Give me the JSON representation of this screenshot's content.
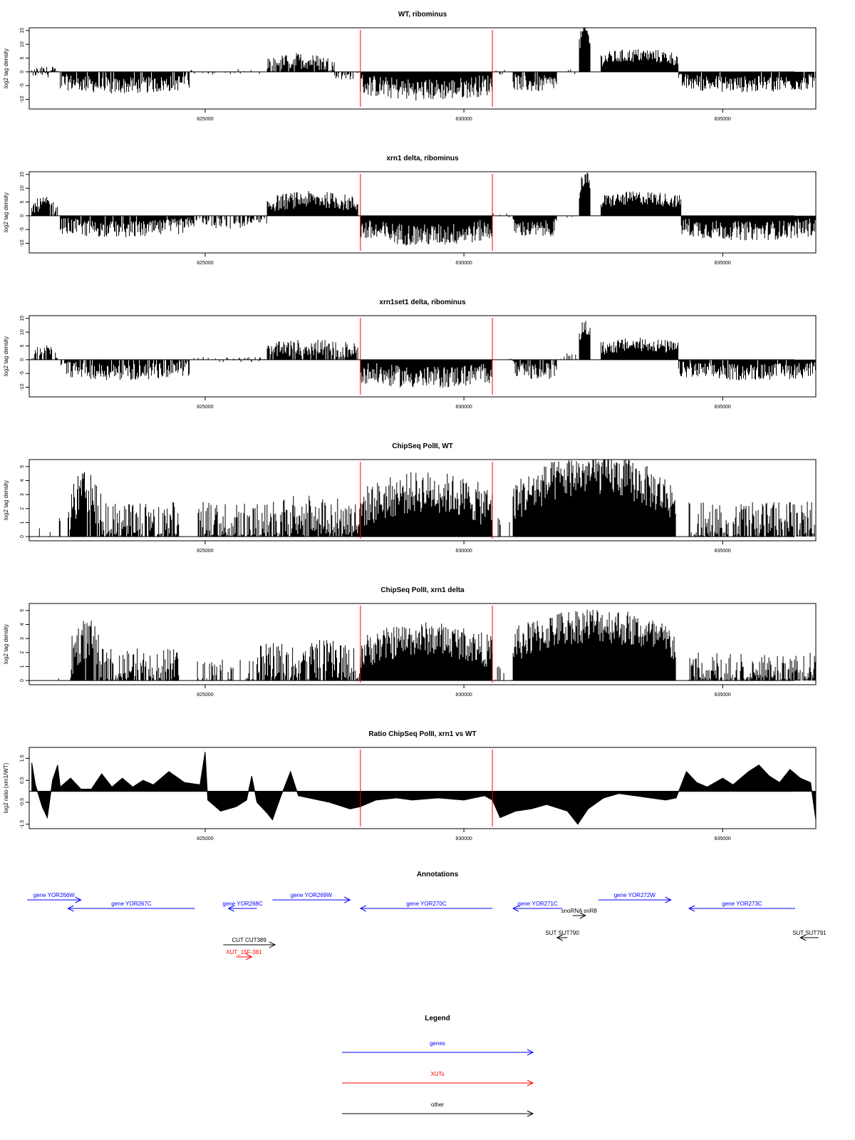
{
  "colors": {
    "gene": "#0000ff",
    "xut": "#ff0000",
    "other": "#000000",
    "marker": "#ff0000",
    "bars": "#000000"
  },
  "chart_data": [
    {
      "type": "bar",
      "title": "WT, ribominus",
      "xlabel": "",
      "ylabel": "log2 tag density",
      "xlim": [
        821600,
        836800
      ],
      "ylim": [
        -13.5,
        16
      ],
      "yticks": [
        15,
        10,
        5,
        0,
        -5,
        -10
      ],
      "xticks": [
        825000,
        830000,
        835000
      ],
      "markers": [
        828000,
        830550
      ],
      "segments": [
        {
          "x0": 821650,
          "x1": 822150,
          "base": 0,
          "amp": 3,
          "var": 2,
          "density": 0.8
        },
        {
          "x0": 822200,
          "x1": 824700,
          "base": -3.5,
          "amp": -1.5,
          "var": 3,
          "density": 0.9
        },
        {
          "x0": 824700,
          "x1": 826200,
          "base": 0,
          "amp": 1,
          "var": 1,
          "density": 0.25
        },
        {
          "x0": 826200,
          "x1": 827500,
          "base": 2,
          "amp": 2,
          "var": 3,
          "density": 0.9
        },
        {
          "x0": 827500,
          "x1": 828000,
          "base": -0.5,
          "amp": -1,
          "var": 2,
          "density": 0.5
        },
        {
          "x0": 828000,
          "x1": 830550,
          "base": -4.5,
          "amp": -2,
          "var": 4,
          "density": 1
        },
        {
          "x0": 830550,
          "x1": 830950,
          "base": 0,
          "amp": 0,
          "var": 1,
          "density": 0.1
        },
        {
          "x0": 830950,
          "x1": 831800,
          "base": -3.5,
          "amp": -1,
          "var": 3,
          "density": 0.95
        },
        {
          "x0": 831800,
          "x1": 832200,
          "base": 0,
          "amp": 0,
          "var": 1,
          "density": 0.1
        },
        {
          "x0": 832230,
          "x1": 832450,
          "base": 10,
          "amp": 5,
          "var": 3,
          "density": 1
        },
        {
          "x0": 832650,
          "x1": 834150,
          "base": 4.5,
          "amp": 1.5,
          "var": 2.5,
          "density": 1
        },
        {
          "x0": 834150,
          "x1": 836800,
          "base": -3.5,
          "amp": -1,
          "var": 3,
          "density": 0.95
        }
      ]
    },
    {
      "type": "bar",
      "title": "xrn1 delta, ribominus",
      "xlabel": "",
      "ylabel": "log2 tag density",
      "xlim": [
        821600,
        836800
      ],
      "ylim": [
        -13.5,
        16
      ],
      "yticks": [
        15,
        10,
        5,
        0,
        -5,
        -10
      ],
      "xticks": [
        825000,
        830000,
        835000
      ],
      "markers": [
        828000,
        830550
      ],
      "segments": [
        {
          "x0": 821650,
          "x1": 822150,
          "base": 2.5,
          "amp": 2,
          "var": 2.5,
          "density": 0.9
        },
        {
          "x0": 822200,
          "x1": 824700,
          "base": -3.5,
          "amp": -1.5,
          "var": 3,
          "density": 0.95
        },
        {
          "x0": 824700,
          "x1": 826200,
          "base": -2,
          "amp": -1,
          "var": 2,
          "density": 0.6
        },
        {
          "x0": 826200,
          "x1": 827950,
          "base": 4,
          "amp": 2,
          "var": 3,
          "density": 1
        },
        {
          "x0": 828000,
          "x1": 830550,
          "base": -5,
          "amp": -2,
          "var": 4,
          "density": 1
        },
        {
          "x0": 830550,
          "x1": 830950,
          "base": 0,
          "amp": 0,
          "var": 1,
          "density": 0.15
        },
        {
          "x0": 830950,
          "x1": 831800,
          "base": -4,
          "amp": -1,
          "var": 3,
          "density": 1
        },
        {
          "x0": 831800,
          "x1": 832200,
          "base": 0,
          "amp": 0,
          "var": 1,
          "density": 0.15
        },
        {
          "x0": 832230,
          "x1": 832450,
          "base": 9,
          "amp": 5,
          "var": 3,
          "density": 1
        },
        {
          "x0": 832650,
          "x1": 834200,
          "base": 5,
          "amp": 1.5,
          "var": 2.5,
          "density": 1
        },
        {
          "x0": 834200,
          "x1": 836800,
          "base": -4,
          "amp": -1.5,
          "var": 3.5,
          "density": 1
        }
      ]
    },
    {
      "type": "bar",
      "title": "xrn1set1 delta, ribominus",
      "xlabel": "",
      "ylabel": "log2 tag density",
      "xlim": [
        821600,
        836800
      ],
      "ylim": [
        -13.5,
        16
      ],
      "yticks": [
        15,
        10,
        5,
        0,
        -5,
        -10
      ],
      "xticks": [
        825000,
        830000,
        835000
      ],
      "markers": [
        828000,
        830550
      ],
      "segments": [
        {
          "x0": 821650,
          "x1": 822150,
          "base": 1.5,
          "amp": 2,
          "var": 2,
          "density": 0.7
        },
        {
          "x0": 822200,
          "x1": 824700,
          "base": -3,
          "amp": -1.5,
          "var": 3,
          "density": 0.8
        },
        {
          "x0": 824700,
          "x1": 826200,
          "base": 0,
          "amp": 1,
          "var": 1,
          "density": 0.3
        },
        {
          "x0": 826200,
          "x1": 827950,
          "base": 3,
          "amp": 1.5,
          "var": 3,
          "density": 0.9
        },
        {
          "x0": 828000,
          "x1": 830550,
          "base": -4.5,
          "amp": -2,
          "var": 4,
          "density": 1
        },
        {
          "x0": 830550,
          "x1": 830950,
          "base": 0,
          "amp": 0,
          "var": 1,
          "density": 0.1
        },
        {
          "x0": 830950,
          "x1": 831800,
          "base": -3.5,
          "amp": -1,
          "var": 3,
          "density": 0.9
        },
        {
          "x0": 831800,
          "x1": 832200,
          "base": 0.5,
          "amp": 1,
          "var": 1,
          "density": 0.2
        },
        {
          "x0": 832230,
          "x1": 832450,
          "base": 8,
          "amp": 4,
          "var": 3,
          "density": 1
        },
        {
          "x0": 832650,
          "x1": 834150,
          "base": 4,
          "amp": 1.5,
          "var": 2.5,
          "density": 1
        },
        {
          "x0": 834150,
          "x1": 836800,
          "base": -3.5,
          "amp": -1,
          "var": 3,
          "density": 0.95
        }
      ]
    },
    {
      "type": "bar",
      "title": "ChipSeq PolII, WT",
      "xlabel": "",
      "ylabel": "log2 tag density",
      "xlim": [
        821600,
        836800
      ],
      "ylim": [
        -0.3,
        5.5
      ],
      "yticks": [
        0,
        1,
        2,
        3,
        4,
        5
      ],
      "xticks": [
        825000,
        830000,
        835000
      ],
      "markers": [
        828000,
        830550
      ],
      "segments": [
        {
          "x0": 821700,
          "x1": 822200,
          "base": 0.5,
          "amp": 0,
          "var": 1,
          "density": 0.1
        },
        {
          "x0": 822350,
          "x1": 823000,
          "base": 1.5,
          "amp": 1.7,
          "var": 1.5,
          "density": 0.9
        },
        {
          "x0": 823000,
          "x1": 824500,
          "base": 1,
          "amp": 0,
          "var": 1.5,
          "density": 0.8
        },
        {
          "x0": 824850,
          "x1": 826100,
          "base": 1,
          "amp": 0,
          "var": 1.5,
          "density": 0.7
        },
        {
          "x0": 826100,
          "x1": 828000,
          "base": 1,
          "amp": 0.5,
          "var": 1.5,
          "density": 0.85
        },
        {
          "x0": 828000,
          "x1": 830550,
          "base": 2,
          "amp": 1.2,
          "var": 1.5,
          "density": 1
        },
        {
          "x0": 830550,
          "x1": 830950,
          "base": 0.5,
          "amp": 0,
          "var": 1,
          "density": 0.2
        },
        {
          "x0": 830950,
          "x1": 834100,
          "base": 2.5,
          "amp": 2,
          "var": 1.5,
          "density": 1
        },
        {
          "x0": 834350,
          "x1": 836800,
          "base": 1,
          "amp": 0,
          "var": 1.5,
          "density": 0.75
        }
      ]
    },
    {
      "type": "bar",
      "title": "ChipSeq PolII, xrn1 delta",
      "xlabel": "",
      "ylabel": "log2 tag density",
      "xlim": [
        821600,
        836800
      ],
      "ylim": [
        -0.3,
        5.5
      ],
      "yticks": [
        0,
        1,
        2,
        3,
        4,
        5
      ],
      "xticks": [
        825000,
        830000,
        835000
      ],
      "markers": [
        828000,
        830550
      ],
      "segments": [
        {
          "x0": 821700,
          "x1": 822300,
          "base": 0.3,
          "amp": 0,
          "var": 0.8,
          "density": 0.08
        },
        {
          "x0": 822400,
          "x1": 823000,
          "base": 1.5,
          "amp": 1.5,
          "var": 1.5,
          "density": 0.9
        },
        {
          "x0": 823000,
          "x1": 824500,
          "base": 1,
          "amp": 0,
          "var": 1.3,
          "density": 0.8
        },
        {
          "x0": 824850,
          "x1": 826000,
          "base": 0.5,
          "amp": 0,
          "var": 1,
          "density": 0.4
        },
        {
          "x0": 826000,
          "x1": 828000,
          "base": 1,
          "amp": 0.5,
          "var": 1.5,
          "density": 0.85
        },
        {
          "x0": 828000,
          "x1": 830550,
          "base": 2,
          "amp": 1,
          "var": 1.2,
          "density": 1
        },
        {
          "x0": 830550,
          "x1": 830950,
          "base": 0.3,
          "amp": 0,
          "var": 0.8,
          "density": 0.2
        },
        {
          "x0": 830950,
          "x1": 834100,
          "base": 2.5,
          "amp": 1.5,
          "var": 1.3,
          "density": 1
        },
        {
          "x0": 834350,
          "x1": 836800,
          "base": 0.8,
          "amp": 0,
          "var": 1.2,
          "density": 0.75
        }
      ]
    },
    {
      "type": "area",
      "title": "Ratio ChipSeq PolII, xrn1 vs WT",
      "xlabel": "",
      "ylabel": "log2 ratio (xrn1/WT)",
      "xlim": [
        821600,
        836800
      ],
      "ylim": [
        -1.7,
        2
      ],
      "yticks": [
        1.5,
        0.5,
        -0.5,
        -1.5
      ],
      "xticks": [
        825000,
        830000,
        835000
      ],
      "markers": [
        828000,
        830550
      ],
      "x": [
        821650,
        821720,
        821850,
        821950,
        822050,
        822150,
        822200,
        822400,
        822600,
        822800,
        823000,
        823200,
        823400,
        823600,
        823800,
        824000,
        824300,
        824600,
        824900,
        825000,
        825050,
        825300,
        825600,
        825800,
        825900,
        826000,
        826200,
        826300,
        826450,
        826650,
        826800,
        827000,
        827400,
        827800,
        828000,
        828300,
        828700,
        829000,
        829500,
        830000,
        830400,
        830550,
        830700,
        831000,
        831300,
        831600,
        832000,
        832200,
        832400,
        832700,
        833000,
        833300,
        833600,
        833900,
        834100,
        834300,
        834500,
        834700,
        835000,
        835200,
        835500,
        835700,
        835900,
        836100,
        836300,
        836500,
        836700,
        836800
      ],
      "values": [
        1.3,
        0.3,
        -0.7,
        -1.2,
        0.5,
        1.2,
        0.2,
        0.6,
        0.1,
        0.1,
        0.8,
        0.2,
        0.6,
        0.2,
        0.5,
        0.3,
        0.9,
        0.4,
        0.3,
        1.8,
        -0.4,
        -0.9,
        -0.7,
        -0.4,
        0.7,
        -0.5,
        -1.0,
        -1.3,
        -0.3,
        0.9,
        -0.2,
        -0.3,
        -0.5,
        -0.8,
        -0.7,
        -0.4,
        -0.3,
        -0.4,
        -0.3,
        -0.4,
        -0.2,
        -0.4,
        -1.2,
        -0.9,
        -0.8,
        -0.6,
        -0.9,
        -1.5,
        -0.8,
        -0.3,
        -0.1,
        -0.2,
        -0.3,
        -0.4,
        -0.3,
        0.9,
        0.4,
        0.2,
        0.6,
        0.3,
        0.9,
        1.2,
        0.7,
        0.4,
        1.0,
        0.6,
        0.4,
        -1.3
      ]
    }
  ],
  "annotations": {
    "title": "Annotations",
    "xlim": [
      821600,
      836800
    ],
    "items": [
      {
        "label": "gene YOR266W",
        "kind": "gene",
        "x0": 821500,
        "x1": 822600,
        "row": 0,
        "strand": "+"
      },
      {
        "label": "gene YOR267C",
        "kind": "gene",
        "x0": 822350,
        "x1": 824800,
        "row": 1,
        "strand": "-"
      },
      {
        "label": "gene YOR268C",
        "kind": "gene",
        "x0": 825450,
        "x1": 826000,
        "row": 1,
        "strand": "-"
      },
      {
        "label": "gene YOR269W",
        "kind": "gene",
        "x0": 826300,
        "x1": 827800,
        "row": 0,
        "strand": "+"
      },
      {
        "label": "gene YOR270C",
        "kind": "gene",
        "x0": 828000,
        "x1": 830550,
        "row": 1,
        "strand": "-"
      },
      {
        "label": "gene YOR271C",
        "kind": "gene",
        "x0": 830950,
        "x1": 831900,
        "row": 1,
        "strand": "-"
      },
      {
        "label": "snoRNA snR8",
        "kind": "other",
        "x0": 832100,
        "x1": 832350,
        "row": 2,
        "strand": "+"
      },
      {
        "label": "gene YOR272W",
        "kind": "gene",
        "x0": 832600,
        "x1": 834000,
        "row": 0,
        "strand": "+"
      },
      {
        "label": "gene YOR273C",
        "kind": "gene",
        "x0": 834350,
        "x1": 836400,
        "row": 1,
        "strand": "-"
      },
      {
        "label": "CUT CUT389",
        "kind": "other",
        "x0": 825350,
        "x1": 826350,
        "row": 3,
        "strand": "+"
      },
      {
        "label": "SUT SUT790",
        "kind": "other",
        "x0": 831800,
        "x1": 832000,
        "row": 4,
        "strand": "-"
      },
      {
        "label": "SUT SUT791",
        "kind": "other",
        "x0": 836500,
        "x1": 836850,
        "row": 4,
        "strand": "-"
      },
      {
        "label": "XUT_15F-381",
        "kind": "xut",
        "x0": 825600,
        "x1": 825900,
        "row": 5,
        "strand": "+"
      }
    ]
  },
  "legend": {
    "title": "Legend",
    "entries": [
      {
        "label": "genes",
        "kind": "gene"
      },
      {
        "label": "XUTs",
        "kind": "xut"
      },
      {
        "label": "other",
        "kind": "other"
      }
    ]
  }
}
